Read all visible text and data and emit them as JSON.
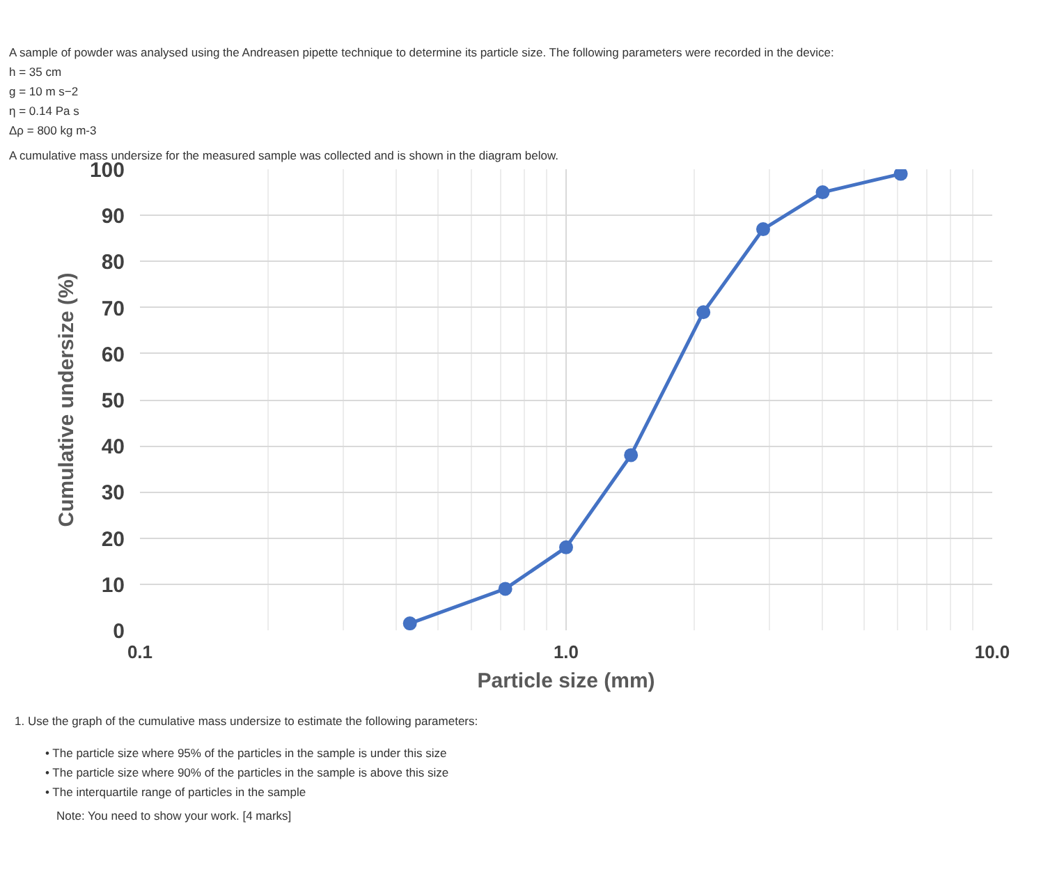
{
  "chart_data": {
    "type": "line",
    "xlabel": "Particle size (mm)",
    "ylabel": "Cumulative undersize (%)",
    "x": [
      0.43,
      0.72,
      1.0,
      1.42,
      2.1,
      2.9,
      4.0,
      6.1
    ],
    "series": [
      {
        "color": "#4472c4",
        "values": [
          1.5,
          9,
          18,
          38,
          69,
          87,
          95,
          99
        ]
      }
    ],
    "log": "x",
    "xlim": [
      0.1,
      10
    ],
    "xticks": [
      {
        "value": 0.1,
        "label": "0.1"
      },
      {
        "value": 1,
        "label": "1.0"
      },
      {
        "value": 10,
        "label": "10.0"
      }
    ],
    "ylim": [
      0,
      100
    ],
    "yticks": [
      0,
      10,
      20,
      30,
      40,
      50,
      60,
      70,
      80,
      90,
      100
    ],
    "grid": true,
    "marker": "circle",
    "line_style": "solid",
    "annotations": [
      "A sample of powder was analysed using the Andreasen pipette technique to determine its particle size. The following parameters were recorded in the device:",
      "h = 35 cm",
      "g = 10 m s−2",
      "η = 0.14 Pa s",
      "Δρ = 800 kg m-3",
      "A cumulative mass undersize for the measured sample was collected and is shown in the diagram below.",
      "1. Use the graph of the cumulative mass undersize to estimate the following parameters:",
      "• The particle size where 95% of the particles in the sample is under this size",
      "• The particle size where 90% of the particles in the sample is above this size",
      "• The interquartile range of particles in the sample",
      "Note: You need to show your work. [4 marks]"
    ]
  }
}
